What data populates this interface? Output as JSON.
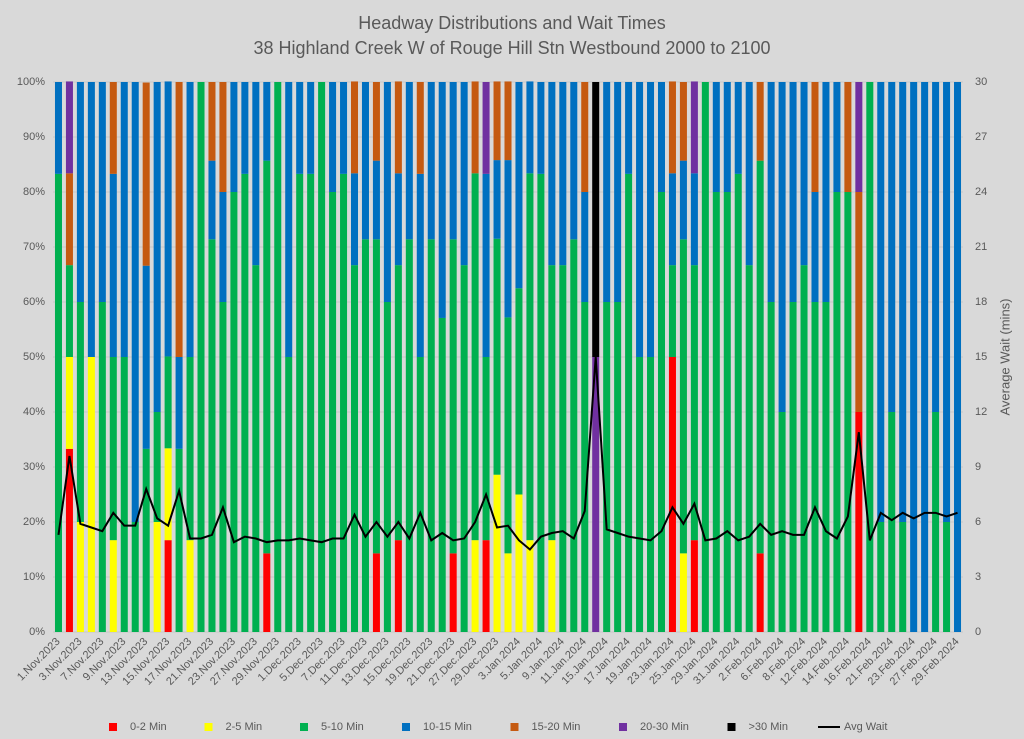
{
  "chart_data": {
    "type": "bar",
    "stacked": true,
    "title": "Headway Distributions and Wait Times",
    "subtitle": "38 Highland Creek  W of Rouge Hill Stn Westbound 2000 to 2100",
    "y2_label": "Average Wait (mins)",
    "categories": [
      "1.Nov.2023",
      null,
      "3.Nov.2023",
      null,
      "7.Nov.2023",
      null,
      "9.Nov.2023",
      null,
      "13.Nov.2023",
      null,
      "15.Nov.2023",
      null,
      "17.Nov.2023",
      null,
      "21.Nov.2023",
      null,
      "23.Nov.2023",
      null,
      "27.Nov.2023",
      null,
      "29.Nov.2023",
      null,
      "1.Dec.2023",
      null,
      "5.Dec.2023",
      null,
      "7.Dec.2023",
      null,
      "11.Dec.2023",
      null,
      "13.Dec.2023",
      null,
      "15.Dec.2023",
      null,
      "19.Dec.2023",
      null,
      "21.Dec.2023",
      null,
      "27.Dec.2023",
      null,
      "29.Dec.2023",
      null,
      "3.Jan.2024",
      null,
      "5.Jan.2024",
      null,
      "9.Jan.2024",
      null,
      "11.Jan.2024",
      null,
      "15.Jan.2024",
      null,
      "17.Jan.2024",
      null,
      "19.Jan.2024",
      null,
      "23.Jan.2024",
      null,
      "25.Jan.2024",
      null,
      "29.Jan.2024",
      null,
      "31.Jan.2024",
      null,
      "2.Feb.2024",
      null,
      "6.Feb.2024",
      null,
      "8.Feb.2024",
      null,
      "12.Feb.2024",
      null,
      "14.Feb.2024",
      null,
      "16.Feb.2024",
      null,
      "21.Feb.2024",
      null,
      "23.Feb.2024",
      null,
      "27.Feb.2024",
      null,
      "29.Feb.2024"
    ],
    "series": [
      {
        "name": "0-2 Min",
        "color": "#ff0000",
        "values": [
          0,
          33.3,
          0,
          0,
          0,
          0,
          0,
          0,
          0,
          0,
          16.7,
          0,
          0,
          0,
          0,
          0,
          0,
          0,
          0,
          14.3,
          0,
          0,
          0,
          0,
          0,
          0,
          0,
          0,
          0,
          14.3,
          0,
          16.7,
          0,
          0,
          0,
          0,
          14.3,
          0,
          0,
          16.7,
          0,
          0,
          0,
          0,
          0,
          0,
          0,
          0,
          0,
          0,
          0,
          0,
          0,
          0,
          0,
          0,
          50,
          0,
          16.7,
          0,
          0,
          0,
          0,
          0,
          14.3,
          0,
          0,
          0,
          0,
          0,
          0,
          0,
          0,
          40,
          0,
          0,
          0,
          0,
          0,
          0,
          0,
          0,
          0
        ]
      },
      {
        "name": "2-5 Min",
        "color": "#ffff00",
        "values": [
          0,
          16.7,
          20,
          50,
          0,
          16.7,
          0,
          0,
          0,
          20,
          16.7,
          0,
          16.7,
          0,
          0,
          0,
          0,
          0,
          0,
          0,
          0,
          0,
          0,
          0,
          0,
          0,
          0,
          0,
          0,
          0,
          0,
          0,
          0,
          0,
          0,
          0,
          0,
          0,
          16.7,
          0,
          28.6,
          14.3,
          25,
          16.7,
          0,
          16.7,
          0,
          0,
          0,
          0,
          0,
          0,
          0,
          0,
          0,
          0,
          0,
          14.3,
          0,
          0,
          0,
          0,
          0,
          0,
          0,
          0,
          0,
          0,
          0,
          0,
          0,
          0,
          0,
          0,
          0,
          0,
          0,
          0,
          0,
          0,
          0,
          0,
          0
        ]
      },
      {
        "name": "5-10 Min",
        "color": "#00b050",
        "values": [
          83.3,
          16.7,
          40,
          0,
          60,
          33.3,
          50,
          20,
          33.3,
          20,
          16.7,
          33.3,
          33.3,
          100,
          71.4,
          60,
          80,
          83.3,
          66.7,
          71.4,
          100,
          50,
          83.3,
          83.3,
          100,
          80,
          83.3,
          66.7,
          71.4,
          57.1,
          60,
          50,
          71.4,
          50,
          71.4,
          57.1,
          57.1,
          66.7,
          66.7,
          33.3,
          42.9,
          42.9,
          37.5,
          66.7,
          83.3,
          50,
          66.7,
          71.4,
          60,
          0,
          60,
          60,
          83.3,
          50,
          50,
          80,
          16.7,
          57.1,
          50,
          100,
          80,
          80,
          83.3,
          66.7,
          71.4,
          60,
          40,
          60,
          66.7,
          60,
          60,
          80,
          80,
          0,
          100,
          20,
          40,
          20,
          0,
          0,
          40,
          20,
          0
        ]
      },
      {
        "name": "10-15 Min",
        "color": "#0070c0",
        "values": [
          16.7,
          0,
          40,
          50,
          40,
          33.3,
          50,
          80,
          33.3,
          60,
          50,
          16.7,
          50,
          0,
          14.3,
          20,
          20,
          16.7,
          33.3,
          14.3,
          0,
          50,
          16.7,
          16.7,
          0,
          20,
          16.7,
          16.7,
          28.6,
          14.3,
          40,
          16.7,
          28.6,
          33.3,
          28.6,
          42.9,
          28.6,
          33.3,
          0,
          33.3,
          14.3,
          28.6,
          37.5,
          16.7,
          16.7,
          33.3,
          33.3,
          28.6,
          20,
          0,
          40,
          40,
          16.7,
          50,
          50,
          20,
          16.7,
          14.3,
          16.7,
          0,
          20,
          20,
          16.7,
          33.3,
          0,
          40,
          60,
          40,
          33.3,
          20,
          40,
          20,
          0,
          0,
          0,
          80,
          60,
          80,
          100,
          100,
          60,
          80,
          100
        ]
      },
      {
        "name": "15-20 Min",
        "color": "#c55a11",
        "values": [
          0,
          16.7,
          0,
          0,
          0,
          16.7,
          0,
          0,
          33.3,
          0,
          0,
          50,
          0,
          0,
          14.3,
          20,
          0,
          0,
          0,
          0,
          0,
          0,
          0,
          0,
          0,
          0,
          0,
          16.7,
          0,
          14.3,
          0,
          16.7,
          0,
          16.7,
          0,
          0,
          0,
          0,
          16.7,
          0,
          14.3,
          14.3,
          0,
          0,
          0,
          0,
          0,
          0,
          20,
          0,
          0,
          0,
          0,
          0,
          0,
          0,
          16.7,
          14.3,
          0,
          0,
          0,
          0,
          0,
          0,
          14.3,
          0,
          0,
          0,
          0,
          20,
          0,
          0,
          20,
          40,
          0,
          0,
          0,
          0,
          0,
          0,
          0,
          0,
          0
        ]
      },
      {
        "name": "20-30 Min",
        "color": "#7030a0",
        "values": [
          0,
          16.7,
          0,
          0,
          0,
          0,
          0,
          0,
          0,
          0,
          0,
          0,
          0,
          0,
          0,
          0,
          0,
          0,
          0,
          0,
          0,
          0,
          0,
          0,
          0,
          0,
          0,
          0,
          0,
          0,
          0,
          0,
          0,
          0,
          0,
          0,
          0,
          0,
          0,
          16.7,
          0,
          0,
          0,
          0,
          0,
          0,
          0,
          0,
          0,
          50,
          0,
          0,
          0,
          0,
          0,
          0,
          0,
          0,
          16.7,
          0,
          0,
          0,
          0,
          0,
          0,
          0,
          0,
          0,
          0,
          0,
          0,
          0,
          0,
          20,
          0,
          0,
          0,
          0,
          0,
          0,
          0,
          0,
          0
        ]
      },
      {
        "name": ">30 Min",
        "color": "#000000",
        "values": [
          0,
          0,
          0,
          0,
          0,
          0,
          0,
          0,
          0,
          0,
          0,
          0,
          0,
          0,
          0,
          0,
          0,
          0,
          0,
          0,
          0,
          0,
          0,
          0,
          0,
          0,
          0,
          0,
          0,
          0,
          0,
          0,
          0,
          0,
          0,
          0,
          0,
          0,
          0,
          0,
          0,
          0,
          0,
          0,
          0,
          0,
          0,
          0,
          0,
          50,
          0,
          0,
          0,
          0,
          0,
          0,
          0,
          0,
          0,
          0,
          0,
          0,
          0,
          0,
          0,
          0,
          0,
          0,
          0,
          0,
          0,
          0,
          0,
          0,
          0,
          0,
          0,
          0,
          0,
          0,
          0,
          0,
          0
        ]
      },
      {
        "name": "Avg Wait",
        "color": "#000000",
        "type": "line",
        "axis": "y2",
        "values": [
          5.3,
          9.6,
          5.9,
          5.7,
          5.5,
          6.5,
          5.8,
          5.8,
          7.8,
          6.2,
          5.8,
          7.7,
          5.1,
          5.1,
          5.3,
          6.8,
          4.9,
          5.2,
          5.1,
          4.9,
          5.0,
          5.0,
          5.1,
          5.0,
          4.9,
          5.1,
          5.1,
          6.4,
          5.2,
          6.0,
          5.2,
          6.0,
          5.1,
          6.5,
          5.0,
          5.4,
          5.0,
          5.1,
          6.0,
          7.5,
          5.7,
          5.8,
          5.0,
          4.5,
          5.2,
          5.4,
          5.5,
          5.1,
          6.6,
          15,
          5.6,
          5.4,
          5.2,
          5.1,
          5.0,
          5.5,
          6.8,
          5.9,
          7.0,
          5.0,
          5.1,
          5.5,
          5.0,
          5.2,
          5.9,
          5.3,
          5.5,
          5.3,
          5.3,
          6.8,
          5.5,
          5.1,
          6.3,
          10.9,
          5.0,
          6.5,
          6.1,
          6.5,
          6.2,
          6.5,
          6.5,
          6.3,
          6.5
        ]
      }
    ],
    "ylim": [
      0,
      100
    ],
    "yticks": [
      {
        "value": 0,
        "label": "0%"
      },
      {
        "value": 10,
        "label": "10%"
      },
      {
        "value": 20,
        "label": "20%"
      },
      {
        "value": 30,
        "label": "30%"
      },
      {
        "value": 40,
        "label": "40%"
      },
      {
        "value": 50,
        "label": "50%"
      },
      {
        "value": 60,
        "label": "60%"
      },
      {
        "value": 70,
        "label": "70%"
      },
      {
        "value": 80,
        "label": "80%"
      },
      {
        "value": 90,
        "label": "90%"
      },
      {
        "value": 100,
        "label": "100%"
      }
    ],
    "y2lim": [
      0,
      30
    ],
    "y2ticks": [
      0,
      3,
      6,
      9,
      12,
      15,
      18,
      21,
      24,
      27,
      30
    ],
    "legend": "bottom"
  }
}
